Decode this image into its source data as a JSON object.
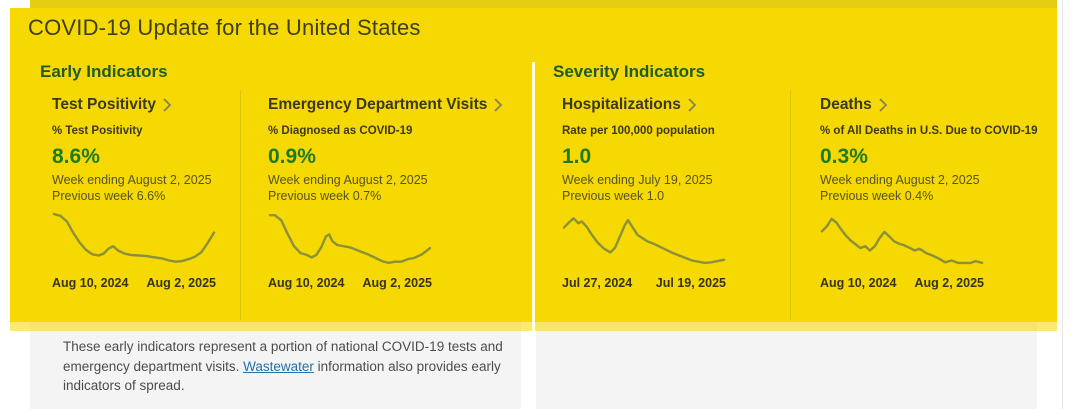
{
  "header": {
    "title": "COVID-19 Update for the United States"
  },
  "sections": {
    "early": "Early Indicators",
    "severity": "Severity Indicators"
  },
  "cards": [
    {
      "title": "Test Positivity",
      "subtitle": "% Test Positivity",
      "value": "8.6%",
      "week_ending": "Week ending August 2, 2025",
      "previous_week": "Previous week 6.6%",
      "x_start": "Aug 10, 2024",
      "x_end": "Aug 2, 2025"
    },
    {
      "title": "Emergency Department Visits",
      "subtitle": "% Diagnosed as COVID-19",
      "value": "0.9%",
      "week_ending": "Week ending August 2, 2025",
      "previous_week": "Previous week 0.7%",
      "x_start": "Aug 10, 2024",
      "x_end": "Aug 2, 2025"
    },
    {
      "title": "Hospitalizations",
      "subtitle": "Rate per 100,000 population",
      "value": "1.0",
      "week_ending": "Week ending July 19, 2025",
      "previous_week": "Previous week 1.0",
      "x_start": "Jul 27, 2024",
      "x_end": "Jul 19, 2025"
    },
    {
      "title": "Deaths",
      "subtitle": "% of All Deaths in U.S. Due to COVID-19",
      "value": "0.3%",
      "week_ending": "Week ending August 2, 2025",
      "previous_week": "Previous week 0.4%",
      "x_start": "Aug 10, 2024",
      "x_end": "Aug 2, 2025"
    }
  ],
  "chart_data": [
    {
      "type": "line",
      "title": "Test Positivity sparkline",
      "x_range": [
        "Aug 10, 2024",
        "Aug 2, 2025"
      ],
      "unit": "%",
      "current_value": 8.6,
      "previous_value": 6.6,
      "points_xy_norm": [
        [
          0,
          0.08
        ],
        [
          0.04,
          0.11
        ],
        [
          0.08,
          0.2
        ],
        [
          0.12,
          0.38
        ],
        [
          0.16,
          0.54
        ],
        [
          0.2,
          0.66
        ],
        [
          0.24,
          0.73
        ],
        [
          0.28,
          0.75
        ],
        [
          0.31,
          0.72
        ],
        [
          0.34,
          0.64
        ],
        [
          0.37,
          0.6
        ],
        [
          0.4,
          0.67
        ],
        [
          0.44,
          0.72
        ],
        [
          0.48,
          0.74
        ],
        [
          0.53,
          0.75
        ],
        [
          0.58,
          0.76
        ],
        [
          0.63,
          0.78
        ],
        [
          0.68,
          0.8
        ],
        [
          0.72,
          0.83
        ],
        [
          0.76,
          0.85
        ],
        [
          0.8,
          0.84
        ],
        [
          0.84,
          0.81
        ],
        [
          0.88,
          0.77
        ],
        [
          0.92,
          0.7
        ],
        [
          0.96,
          0.55
        ],
        [
          1,
          0.38
        ]
      ]
    },
    {
      "type": "line",
      "title": "Emergency Department Visits sparkline",
      "x_range": [
        "Aug 10, 2024",
        "Aug 2, 2025"
      ],
      "unit": "%",
      "current_value": 0.9,
      "previous_value": 0.7,
      "points_xy_norm": [
        [
          0,
          0.1
        ],
        [
          0.03,
          0.1
        ],
        [
          0.07,
          0.18
        ],
        [
          0.11,
          0.4
        ],
        [
          0.15,
          0.6
        ],
        [
          0.19,
          0.71
        ],
        [
          0.23,
          0.74
        ],
        [
          0.26,
          0.78
        ],
        [
          0.29,
          0.74
        ],
        [
          0.32,
          0.62
        ],
        [
          0.35,
          0.44
        ],
        [
          0.37,
          0.41
        ],
        [
          0.39,
          0.52
        ],
        [
          0.42,
          0.58
        ],
        [
          0.46,
          0.6
        ],
        [
          0.5,
          0.62
        ],
        [
          0.54,
          0.66
        ],
        [
          0.58,
          0.7
        ],
        [
          0.62,
          0.74
        ],
        [
          0.66,
          0.79
        ],
        [
          0.7,
          0.84
        ],
        [
          0.74,
          0.87
        ],
        [
          0.78,
          0.85
        ],
        [
          0.82,
          0.85
        ],
        [
          0.86,
          0.81
        ],
        [
          0.9,
          0.79
        ],
        [
          0.95,
          0.73
        ],
        [
          1,
          0.63
        ]
      ]
    },
    {
      "type": "line",
      "title": "Hospitalizations sparkline",
      "x_range": [
        "Jul 27, 2024",
        "Jul 19, 2025"
      ],
      "unit": "rate per 100,000",
      "current_value": 1.0,
      "previous_value": 1.0,
      "points_xy_norm": [
        [
          0,
          0.3
        ],
        [
          0.03,
          0.22
        ],
        [
          0.06,
          0.15
        ],
        [
          0.09,
          0.23
        ],
        [
          0.11,
          0.2
        ],
        [
          0.14,
          0.28
        ],
        [
          0.17,
          0.4
        ],
        [
          0.21,
          0.54
        ],
        [
          0.25,
          0.64
        ],
        [
          0.29,
          0.7
        ],
        [
          0.32,
          0.62
        ],
        [
          0.35,
          0.44
        ],
        [
          0.38,
          0.26
        ],
        [
          0.4,
          0.18
        ],
        [
          0.43,
          0.3
        ],
        [
          0.46,
          0.42
        ],
        [
          0.49,
          0.47
        ],
        [
          0.52,
          0.52
        ],
        [
          0.56,
          0.56
        ],
        [
          0.6,
          0.61
        ],
        [
          0.64,
          0.66
        ],
        [
          0.68,
          0.71
        ],
        [
          0.72,
          0.75
        ],
        [
          0.76,
          0.79
        ],
        [
          0.8,
          0.83
        ],
        [
          0.84,
          0.85
        ],
        [
          0.88,
          0.87
        ],
        [
          0.92,
          0.86
        ],
        [
          0.96,
          0.84
        ],
        [
          1,
          0.82
        ]
      ]
    },
    {
      "type": "line",
      "title": "Deaths sparkline",
      "x_range": [
        "Aug 10, 2024",
        "Aug 2, 2025"
      ],
      "unit": "%",
      "current_value": 0.3,
      "previous_value": 0.4,
      "points_xy_norm": [
        [
          0,
          0.36
        ],
        [
          0.03,
          0.28
        ],
        [
          0.06,
          0.16
        ],
        [
          0.09,
          0.22
        ],
        [
          0.12,
          0.33
        ],
        [
          0.15,
          0.43
        ],
        [
          0.18,
          0.51
        ],
        [
          0.21,
          0.57
        ],
        [
          0.24,
          0.63
        ],
        [
          0.27,
          0.6
        ],
        [
          0.3,
          0.67
        ],
        [
          0.33,
          0.6
        ],
        [
          0.36,
          0.47
        ],
        [
          0.39,
          0.37
        ],
        [
          0.42,
          0.44
        ],
        [
          0.45,
          0.52
        ],
        [
          0.48,
          0.56
        ],
        [
          0.51,
          0.58
        ],
        [
          0.55,
          0.63
        ],
        [
          0.58,
          0.67
        ],
        [
          0.61,
          0.64
        ],
        [
          0.65,
          0.71
        ],
        [
          0.69,
          0.75
        ],
        [
          0.73,
          0.8
        ],
        [
          0.77,
          0.86
        ],
        [
          0.81,
          0.83
        ],
        [
          0.85,
          0.87
        ],
        [
          0.89,
          0.87
        ],
        [
          0.93,
          0.87
        ],
        [
          0.96,
          0.84
        ],
        [
          1,
          0.87
        ]
      ]
    }
  ],
  "footnote": {
    "before_link": "These early indicators represent a portion of national COVID-19 tests and emergency department visits. ",
    "link": "Wastewater",
    "after_link": " information also provides early indicators of spread."
  },
  "colors": {
    "panel_yellow": "#f6d802",
    "top_strip_yellow": "#e4cc12",
    "heading_green": "#1f5c23",
    "value_green": "#1d7a24",
    "sparkline_olive": "#8a9138",
    "card_text_dark": "#3a391d",
    "body_text_olive": "#55532b",
    "footnote_bg": "#f4f4f4",
    "footnote_text": "#4c4c4c",
    "link_blue": "#2470a8"
  }
}
